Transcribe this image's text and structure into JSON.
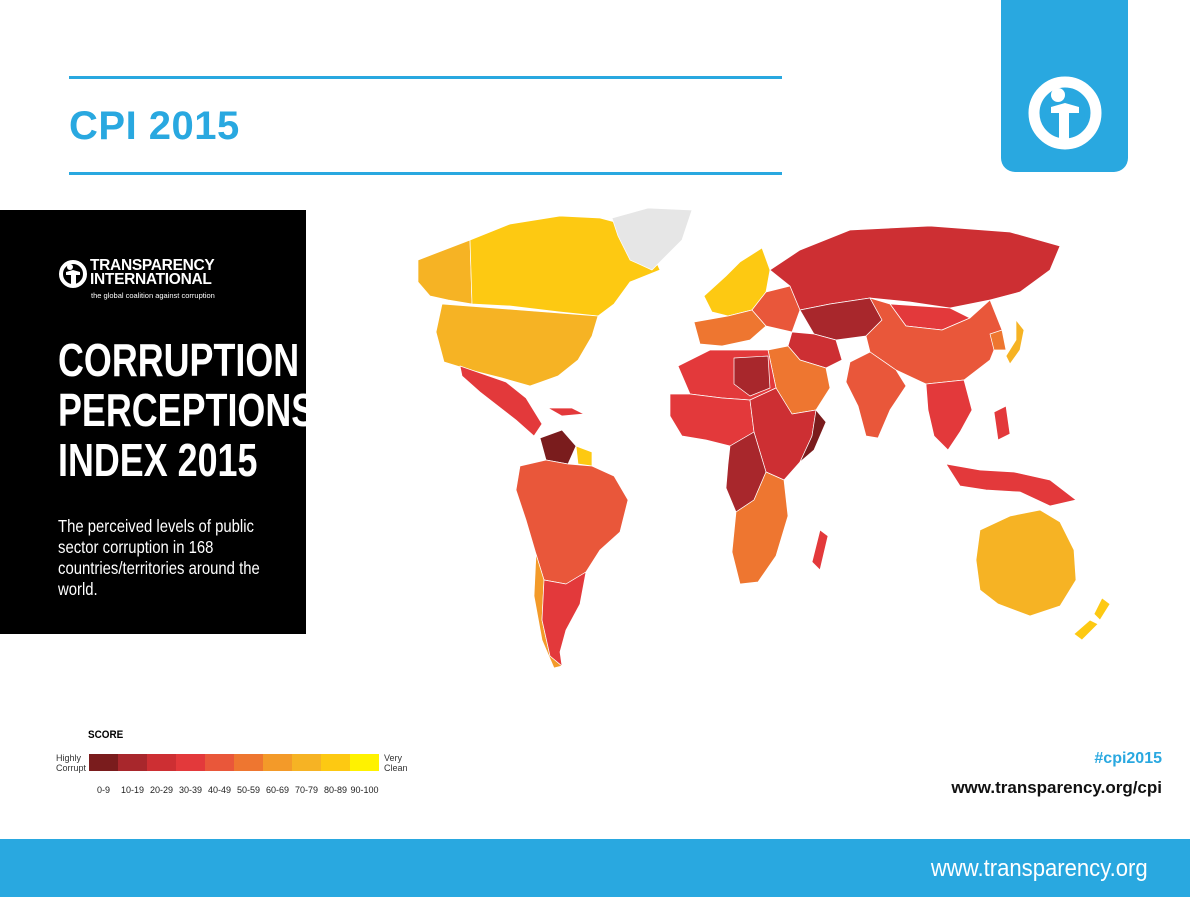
{
  "header": {
    "title": "CPI 2015"
  },
  "panel": {
    "org_name_1": "TRANSPARENCY",
    "org_name_2": "INTERNATIONAL",
    "org_tagline": "the global coalition against corruption",
    "title_1": "CORRUPTION",
    "title_2": "PERCEPTIONS",
    "title_3": "INDEX 2015",
    "subtitle": "The perceived levels of public sector corruption in 168 countries/territories around the world."
  },
  "legend": {
    "title": "SCORE",
    "low_label_1": "Highly",
    "low_label_2": "Corrupt",
    "high_label_1": "Very",
    "high_label_2": "Clean",
    "bins": [
      "0-9",
      "10-19",
      "20-29",
      "30-39",
      "40-49",
      "50-59",
      "60-69",
      "70-79",
      "80-89",
      "90-100"
    ],
    "colors": [
      "#7a1c1d",
      "#a8272c",
      "#cd2f33",
      "#e3393b",
      "#e9573a",
      "#ee7630",
      "#f39a29",
      "#f6b324",
      "#fdc912",
      "#fff200"
    ]
  },
  "map_colors": {
    "north_america_canada": "#fdc912",
    "usa": "#f6b324",
    "alaska": "#f6b324",
    "greenland": "#e6e6e6",
    "mexico": "#e3393b",
    "central_america": "#e3393b",
    "venezuela": "#7a1c1d",
    "guyana": "#fdc912",
    "south_america": "#e9573a",
    "chile": "#f39a29",
    "argentina": "#e3393b",
    "western_europe": "#fdc912",
    "southern_europe": "#ee7630",
    "eastern_europe": "#e9573a",
    "russia": "#cd2f33",
    "north_africa": "#e3393b",
    "libya": "#a8272c",
    "sahel": "#cd2f33",
    "west_africa": "#e3393b",
    "central_africa": "#a8272c",
    "east_africa": "#cd2f33",
    "somalia": "#7a1c1d",
    "southern_africa": "#ee7630",
    "madagascar": "#e3393b",
    "saudi_peninsula": "#ee7630",
    "central_asia": "#a8272c",
    "iran": "#cd2f33",
    "india": "#e9573a",
    "china": "#e9573a",
    "mongolia": "#e3393b",
    "japan": "#f6b324",
    "korea": "#ee7630",
    "southeast_asia": "#e3393b",
    "indonesia": "#e3393b",
    "australia": "#f6b324",
    "new_zealand": "#fdc912"
  },
  "contact": {
    "hashtag": "#cpi2015",
    "url": "www.transparency.org/cpi"
  },
  "footer": {
    "url": "www.transparency.org"
  }
}
